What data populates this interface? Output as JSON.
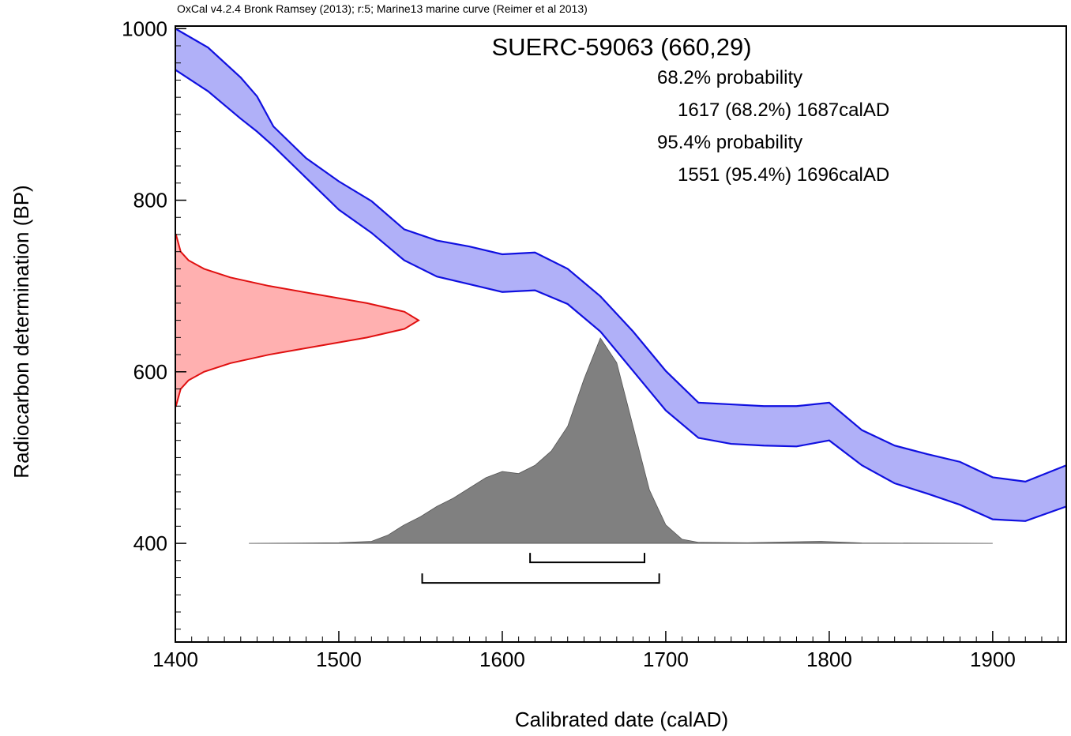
{
  "chart_data": {
    "type": "calibration",
    "note": "OxCal v4.2.4 Bronk Ramsey (2013); r:5; Marine13 marine curve (Reimer et al 2013)",
    "title": "SUERC-59063 (660,29)",
    "xlabel": "Calibrated date (calAD)",
    "ylabel": "Radiocarbon determination (BP)",
    "xlim": [
      1400,
      1945
    ],
    "ylim": [
      285,
      1003
    ],
    "xticks": [
      1400,
      1500,
      1600,
      1700,
      1800,
      1900
    ],
    "yticks": [
      400,
      600,
      800,
      1000
    ],
    "xminorticks": [
      1410,
      1420,
      1430,
      1440,
      1450,
      1460,
      1470,
      1480,
      1490,
      1510,
      1520,
      1530,
      1540,
      1550,
      1560,
      1570,
      1580,
      1590,
      1610,
      1620,
      1630,
      1640,
      1650,
      1660,
      1670,
      1680,
      1690,
      1710,
      1720,
      1730,
      1740,
      1750,
      1760,
      1770,
      1780,
      1790,
      1810,
      1820,
      1830,
      1840,
      1850,
      1860,
      1870,
      1880,
      1890,
      1910,
      1920,
      1930,
      1940
    ],
    "yminorticks": [
      300,
      320,
      340,
      360,
      380,
      420,
      440,
      460,
      480,
      500,
      520,
      540,
      560,
      580,
      620,
      640,
      660,
      680,
      700,
      720,
      740,
      760,
      780,
      820,
      840,
      860,
      880,
      900,
      920,
      940,
      960,
      980
    ],
    "curve": {
      "color": "#1010e0",
      "fill": "#b0b0f8",
      "x": [
        1400,
        1420,
        1440,
        1450,
        1460,
        1480,
        1500,
        1520,
        1540,
        1560,
        1580,
        1600,
        1620,
        1640,
        1660,
        1680,
        1700,
        1720,
        1740,
        1760,
        1780,
        1800,
        1820,
        1840,
        1860,
        1880,
        1900,
        1920,
        1945
      ],
      "upper": [
        1000,
        978,
        943,
        921,
        886,
        849,
        822,
        799,
        766,
        753,
        746,
        737,
        739,
        720,
        688,
        647,
        601,
        564,
        562,
        560,
        560,
        564,
        532,
        514,
        504,
        495,
        477,
        472,
        491
      ],
      "lower": [
        952,
        927,
        895,
        880,
        863,
        826,
        789,
        762,
        730,
        711,
        702,
        693,
        695,
        679,
        647,
        601,
        555,
        523,
        516,
        514,
        513,
        520,
        491,
        470,
        458,
        445,
        428,
        426,
        443
      ]
    },
    "measurement": {
      "color": "#e01010",
      "fill": "#ffb0b0",
      "bp": [
        560,
        580,
        590,
        600,
        610,
        620,
        630,
        640,
        650,
        660,
        670,
        680,
        690,
        700,
        710,
        720,
        730,
        740,
        760
      ],
      "density": [
        0.0026,
        0.022,
        0.054,
        0.118,
        0.226,
        0.386,
        0.586,
        0.788,
        0.942,
        1,
        0.942,
        0.788,
        0.586,
        0.386,
        0.226,
        0.118,
        0.054,
        0.022,
        0.0026
      ]
    },
    "calibrated": {
      "color": "#808080",
      "x": [
        1445,
        1500,
        1520,
        1530,
        1540,
        1550,
        1560,
        1570,
        1580,
        1590,
        1600,
        1610,
        1620,
        1630,
        1640,
        1650,
        1660,
        1670,
        1680,
        1690,
        1700,
        1710,
        1720,
        1750,
        1795,
        1820,
        1900
      ],
      "density": [
        0,
        0.003,
        0.01,
        0.04,
        0.09,
        0.13,
        0.18,
        0.22,
        0.27,
        0.32,
        0.35,
        0.34,
        0.38,
        0.45,
        0.57,
        0.8,
        1,
        0.88,
        0.57,
        0.26,
        0.09,
        0.02,
        0.005,
        0.003,
        0.01,
        0.002,
        0
      ]
    },
    "ranges": [
      {
        "heading": "68.2% probability",
        "label": "1617 (68.2%) 1687calAD",
        "from": 1617,
        "to": 1687
      },
      {
        "heading": "95.4% probability",
        "label": "1551 (95.4%) 1696calAD",
        "from": 1551,
        "to": 1696
      }
    ]
  }
}
